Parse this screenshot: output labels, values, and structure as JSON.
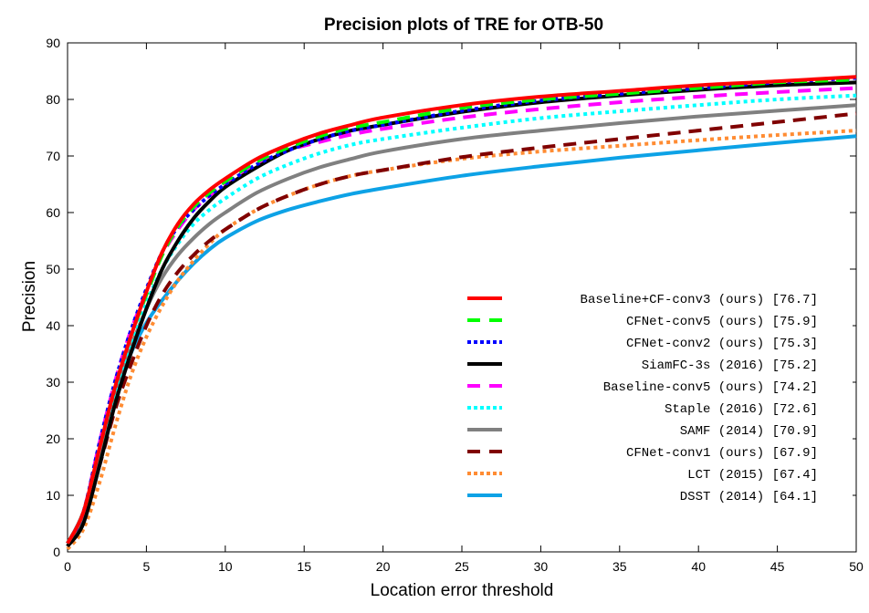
{
  "chart_data": {
    "type": "line",
    "title": "Precision plots of TRE for OTB-50",
    "xlabel": "Location error threshold",
    "ylabel": "Precision",
    "xlim": [
      0,
      50
    ],
    "ylim": [
      0,
      90
    ],
    "xticks": [
      0,
      5,
      10,
      15,
      20,
      25,
      30,
      35,
      40,
      45,
      50
    ],
    "yticks": [
      0,
      10,
      20,
      30,
      40,
      50,
      60,
      70,
      80,
      90
    ],
    "grid": false,
    "legend_position": "bottom-right",
    "x": [
      0,
      1,
      2,
      3,
      4,
      5,
      6,
      7,
      8,
      9,
      10,
      12,
      14,
      16,
      18,
      20,
      25,
      30,
      35,
      40,
      45,
      50
    ],
    "series": [
      {
        "name": "Baseline+CF-conv3 (ours) [76.7]",
        "color": "#ff0000",
        "dash": "solid",
        "values": [
          1.5,
          7,
          18,
          29,
          38,
          46,
          53,
          58,
          61.5,
          64,
          66,
          69.5,
          72,
          74,
          75.5,
          76.8,
          79,
          80.5,
          81.5,
          82.5,
          83.2,
          84
        ]
      },
      {
        "name": "CFNet-conv5 (ours) [75.9]",
        "color": "#00ff00",
        "dash": "dash",
        "values": [
          1.5,
          7,
          18,
          29,
          38,
          45.5,
          52.5,
          57.5,
          61,
          63.5,
          65.5,
          69,
          71.5,
          73.5,
          75,
          76,
          78.5,
          80,
          81,
          82,
          83,
          83.5
        ]
      },
      {
        "name": "CFNet-conv2 (ours) [75.3]",
        "color": "#0000ff",
        "dash": "dot",
        "values": [
          1.5,
          7,
          19,
          30,
          39,
          46.5,
          53,
          57.5,
          60.5,
          63,
          65,
          68.5,
          71,
          73,
          74.5,
          75.5,
          78,
          79.8,
          81,
          82,
          83,
          83.8
        ]
      },
      {
        "name": "SiamFC-3s (2016) [75.2]",
        "color": "#000000",
        "dash": "solid",
        "values": [
          1,
          5,
          15,
          26,
          35,
          43,
          50,
          55,
          59,
          62,
          64.5,
          68,
          71,
          73,
          74.5,
          75.5,
          77.8,
          79.5,
          80.7,
          81.7,
          82.5,
          83
        ]
      },
      {
        "name": "Baseline-conv5 (ours) [74.2]",
        "color": "#ff00ff",
        "dash": "dash",
        "values": [
          1.5,
          7,
          19,
          30,
          39,
          46,
          52.5,
          57,
          60.5,
          63,
          65,
          68.5,
          71,
          72.5,
          73.8,
          74.8,
          76.8,
          78.3,
          79.5,
          80.5,
          81.3,
          82
        ]
      },
      {
        "name": "Staple (2016) [72.6]",
        "color": "#00ffff",
        "dash": "dot",
        "values": [
          1.5,
          7,
          18,
          28,
          37,
          44,
          50,
          54.5,
          58,
          60.5,
          62.5,
          66,
          68.5,
          70.5,
          72,
          73,
          75,
          76.7,
          77.9,
          79,
          80,
          80.7
        ]
      },
      {
        "name": "SAMF (2014) [70.9]",
        "color": "#808080",
        "dash": "solid",
        "values": [
          1,
          6,
          16,
          27,
          36,
          43,
          48.5,
          52.5,
          55.5,
          58,
          60,
          63.5,
          66,
          68,
          69.5,
          70.8,
          73,
          74.5,
          75.8,
          77,
          78,
          79
        ]
      },
      {
        "name": "CFNet-conv1 (ours) [67.9]",
        "color": "#800000",
        "dash": "dash",
        "values": [
          1,
          6,
          15,
          25,
          33,
          40,
          45.5,
          49.5,
          52.5,
          55,
          57,
          60.5,
          63,
          65,
          66.5,
          67.5,
          69.8,
          71.5,
          73,
          74.5,
          76,
          77.5
        ]
      },
      {
        "name": "LCT (2015) [67.4]",
        "color": "#ff8c33",
        "dash": "dot",
        "values": [
          0.5,
          4,
          12,
          22,
          31,
          38,
          43.5,
          48,
          51.5,
          54.5,
          57,
          60.5,
          63,
          65,
          66.5,
          67.5,
          69.5,
          70.8,
          71.8,
          72.8,
          73.7,
          74.5
        ]
      },
      {
        "name": "DSST (2014) [64.1]",
        "color": "#0da2e6",
        "dash": "solid",
        "values": [
          1.5,
          7,
          17,
          27,
          35,
          40.5,
          44.5,
          48,
          51,
          53.5,
          55.5,
          58.5,
          60.5,
          62,
          63.3,
          64.3,
          66.5,
          68.2,
          69.7,
          71,
          72.3,
          73.5
        ]
      }
    ]
  }
}
